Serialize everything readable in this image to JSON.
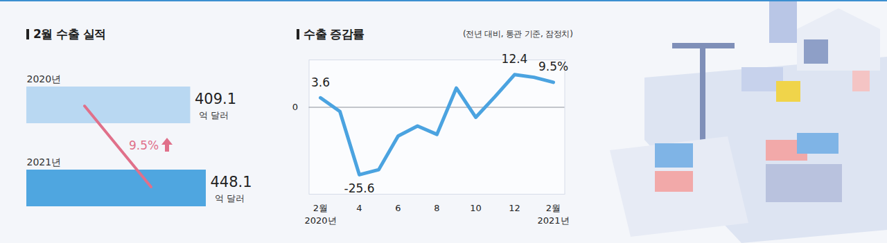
{
  "chart_data": [
    {
      "type": "bar",
      "title": "2월 수출 실적",
      "orientation": "horizontal",
      "categories": [
        "2020년",
        "2021년"
      ],
      "values": [
        409.1,
        448.1
      ],
      "colors": [
        "#b9d8f2",
        "#4fa6e0"
      ],
      "xlim": [
        0,
        448.1
      ],
      "tick_labels": false,
      "data_labels": true,
      "value_unit": "억 달러",
      "annotation": "9.5%"
    },
    {
      "type": "line",
      "title": "수출 증감률",
      "subtitle": "(전년 대비, 통관 기준, 잠정치)",
      "categories": [
        "2월\n2020년",
        null,
        "4",
        null,
        "6",
        null,
        "8",
        null,
        "10",
        null,
        "12",
        null,
        "2월\n2021년"
      ],
      "values": [
        3.6,
        -1.6,
        -25.6,
        -23.7,
        -10.9,
        -7.1,
        -10.3,
        7.3,
        -3.8,
        4.1,
        12.4,
        11.4,
        9.5
      ],
      "value_labels": [
        "3.6",
        null,
        "-25.6",
        null,
        null,
        null,
        null,
        null,
        null,
        null,
        "12.4",
        null,
        "9.5%"
      ],
      "data_labels": true,
      "color": "#4ba3e0",
      "ylim": [
        -33,
        18
      ],
      "yticks": [
        0
      ],
      "grid": true
    }
  ]
}
